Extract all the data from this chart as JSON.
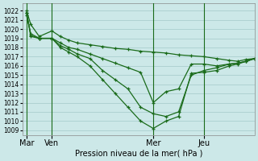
{
  "title": "Pression niveau de la mer( hPa )",
  "background_color": "#cce8e8",
  "grid_color": "#aacece",
  "line_color": "#1a6b1a",
  "ylim": [
    1008.5,
    1022.8
  ],
  "yticks": [
    1009,
    1010,
    1011,
    1012,
    1013,
    1014,
    1015,
    1016,
    1017,
    1018,
    1019,
    1020,
    1021,
    1022
  ],
  "xtick_labels": [
    "Mar",
    "Ven",
    "Mer",
    "Jeu"
  ],
  "xtick_positions": [
    0,
    12,
    60,
    84
  ],
  "vlines": [
    0,
    12,
    60,
    84
  ],
  "xlim": [
    -2,
    108
  ],
  "lines": [
    {
      "x": [
        0,
        2,
        6,
        12,
        16,
        20,
        24,
        30,
        36,
        42,
        48,
        54,
        60,
        66,
        72,
        78,
        84,
        90,
        96,
        100,
        104,
        108
      ],
      "y": [
        1022.0,
        1020.5,
        1019.2,
        1019.8,
        1019.2,
        1018.8,
        1018.5,
        1018.3,
        1018.1,
        1017.9,
        1017.8,
        1017.6,
        1017.5,
        1017.4,
        1017.2,
        1017.1,
        1017.0,
        1016.8,
        1016.6,
        1016.5,
        1016.7,
        1016.8
      ],
      "marker": "+"
    },
    {
      "x": [
        0,
        2,
        6,
        12,
        16,
        20,
        24,
        30,
        36,
        42,
        48,
        54,
        60,
        66,
        72,
        78,
        84,
        90,
        96,
        100,
        104,
        108
      ],
      "y": [
        1021.5,
        1019.5,
        1019.0,
        1019.0,
        1018.5,
        1018.0,
        1017.8,
        1017.3,
        1016.8,
        1016.3,
        1015.8,
        1015.3,
        1012.0,
        1013.2,
        1013.5,
        1016.2,
        1016.2,
        1016.0,
        1016.2,
        1016.3,
        1016.5,
        1016.8
      ],
      "marker": "+"
    },
    {
      "x": [
        0,
        2,
        6,
        12,
        16,
        20,
        24,
        30,
        36,
        42,
        48,
        54,
        60,
        66,
        72,
        78,
        84,
        90,
        96,
        100,
        104,
        108
      ],
      "y": [
        1021.8,
        1019.3,
        1019.0,
        1019.0,
        1018.2,
        1017.8,
        1017.3,
        1016.8,
        1015.5,
        1014.5,
        1013.5,
        1011.5,
        1010.8,
        1010.5,
        1011.0,
        1015.0,
        1015.5,
        1015.8,
        1016.2,
        1016.3,
        1016.5,
        1016.8
      ],
      "marker": "+"
    },
    {
      "x": [
        0,
        2,
        6,
        12,
        16,
        20,
        24,
        30,
        36,
        42,
        48,
        54,
        60,
        66,
        72,
        78,
        84,
        90,
        96,
        100,
        104,
        108
      ],
      "y": [
        1021.8,
        1019.2,
        1019.0,
        1019.0,
        1018.0,
        1017.5,
        1017.0,
        1016.0,
        1014.5,
        1013.0,
        1011.5,
        1010.0,
        1009.2,
        1010.0,
        1010.5,
        1015.2,
        1015.3,
        1015.5,
        1016.0,
        1016.2,
        1016.5,
        1016.8
      ],
      "marker": "+"
    }
  ]
}
